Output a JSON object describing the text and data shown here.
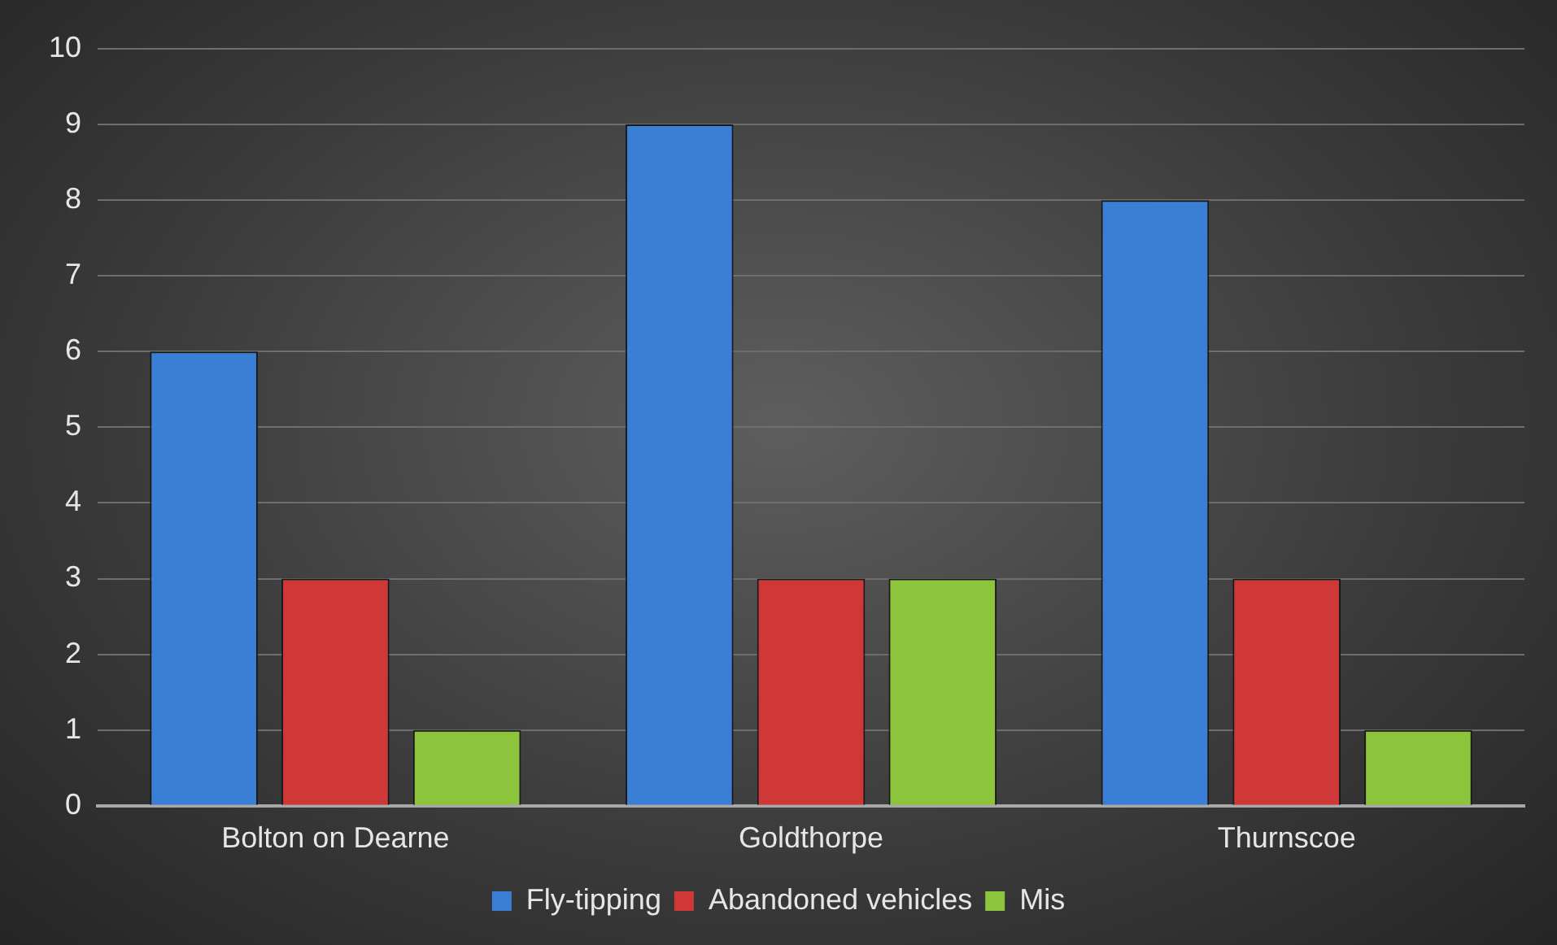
{
  "chart_data": {
    "type": "bar",
    "categories": [
      "Bolton on Dearne",
      "Goldthorpe",
      "Thurnscoe"
    ],
    "series": [
      {
        "name": "Fly-tipping",
        "color": "#3a7fd5",
        "values": [
          6,
          9,
          8
        ]
      },
      {
        "name": "Abandoned vehicles",
        "color": "#d03838",
        "values": [
          3,
          3,
          3
        ]
      },
      {
        "name": "Mis",
        "color": "#8cc43c",
        "values": [
          1,
          3,
          1
        ]
      }
    ],
    "ylim": [
      0,
      10
    ],
    "yticks": [
      0,
      1,
      2,
      3,
      4,
      5,
      6,
      7,
      8,
      9,
      10
    ],
    "grid": "y",
    "legend": "bottom"
  }
}
